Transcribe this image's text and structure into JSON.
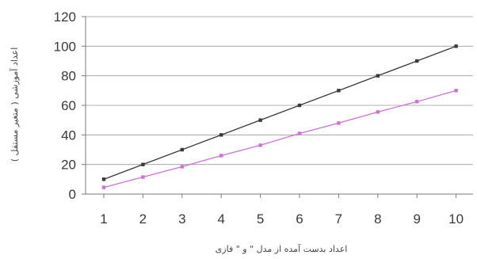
{
  "chart_data": {
    "type": "line",
    "title": "",
    "xlabel": "اعداد بدست آمده از مدل \" و \" فازی",
    "ylabel": "اعداد آموزشی ( متغیر مستقل )",
    "categories": [
      "1",
      "2",
      "3",
      "4",
      "5",
      "6",
      "7",
      "8",
      "9",
      "10"
    ],
    "ylim": [
      0,
      120
    ],
    "yticks": [
      "0",
      "20",
      "40",
      "60",
      "80",
      "100",
      "120"
    ],
    "grid": "horizontal",
    "legend": "none",
    "series": [
      {
        "values": [
          10,
          20,
          30,
          40,
          50,
          60,
          70,
          80,
          90,
          100
        ],
        "color": "#3a3a3a"
      },
      {
        "values": [
          4.5,
          11.5,
          18.5,
          26,
          33,
          41,
          48,
          55.5,
          62.5,
          70
        ],
        "color": "#d070d8"
      }
    ]
  }
}
